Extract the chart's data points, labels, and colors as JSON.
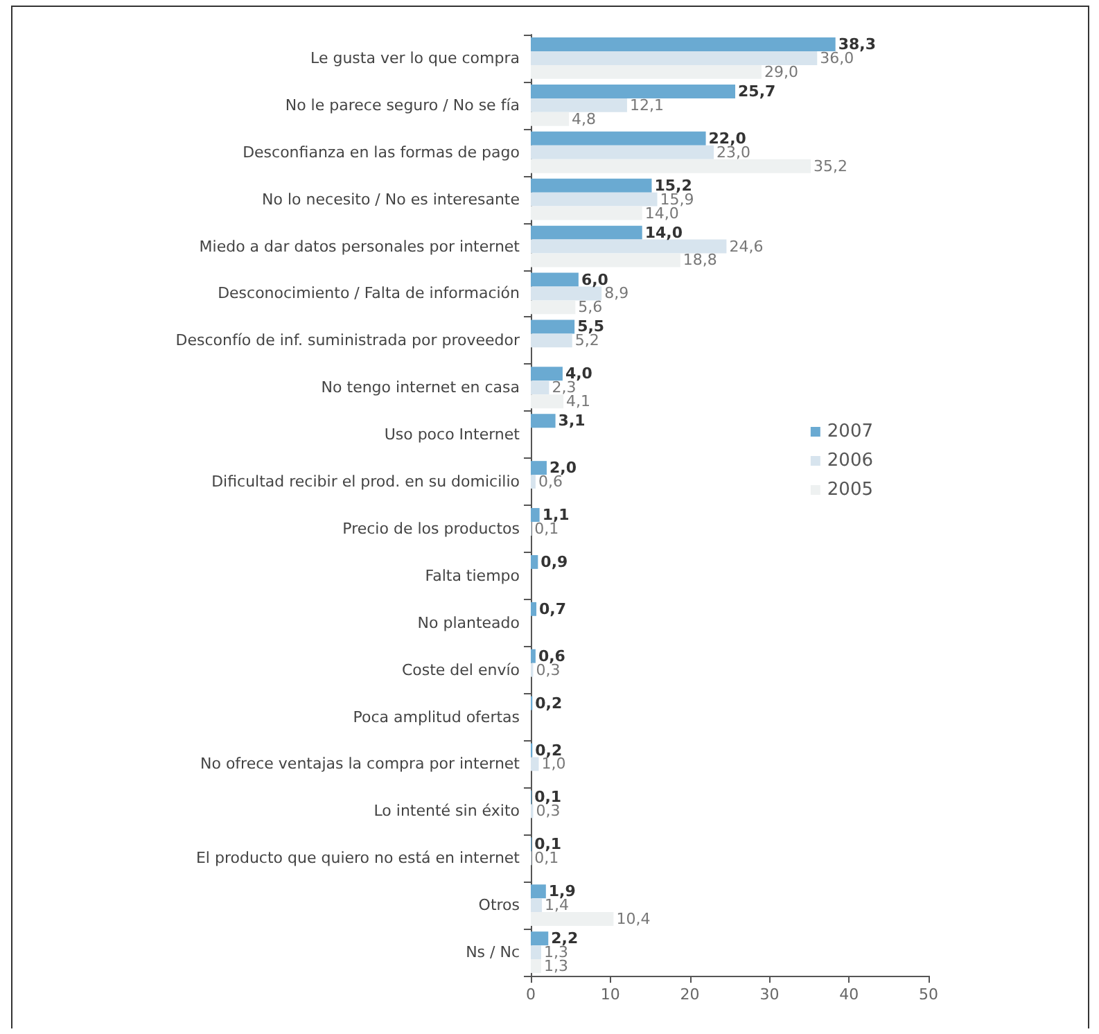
{
  "chart_data": {
    "type": "bar",
    "orientation": "horizontal",
    "categories": [
      "Le gusta ver lo que compra",
      "No le parece seguro / No se fía",
      "Desconfianza en las formas de pago",
      "No lo necesito / No es interesante",
      "Miedo a dar datos personales por internet",
      "Desconocimiento / Falta de información",
      "Desconfío de inf. suministrada por proveedor",
      "No tengo internet en casa",
      "Uso poco Internet",
      "Dificultad recibir el prod. en su domicilio",
      "Precio de los productos",
      "Falta tiempo",
      "No planteado",
      "Coste del envío",
      "Poca amplitud ofertas",
      "No ofrece ventajas la compra por internet",
      "Lo intenté sin éxito",
      "El producto que quiero no está en internet",
      "Otros",
      "Ns / Nc"
    ],
    "series": [
      {
        "name": "2007",
        "color": "#6aaad2",
        "values": [
          38.3,
          25.7,
          22.0,
          15.2,
          14.0,
          6.0,
          5.5,
          4.0,
          3.1,
          2.0,
          1.1,
          0.9,
          0.7,
          0.6,
          0.2,
          0.2,
          0.1,
          0.1,
          1.9,
          2.2
        ],
        "value_labels": [
          "38,3",
          "25,7",
          "22,0",
          "15,2",
          "14,0",
          "6,0",
          "5,5",
          "4,0",
          "3,1",
          "2,0",
          "1,1",
          "0,9",
          "0,7",
          "0,6",
          "0,2",
          "0,2",
          "0,1",
          "0,1",
          "1,9",
          "2,2"
        ]
      },
      {
        "name": "2006",
        "color": "#d7e4ee",
        "values": [
          36.0,
          12.1,
          23.0,
          15.9,
          24.6,
          8.9,
          5.2,
          2.3,
          null,
          0.6,
          0.1,
          null,
          null,
          0.3,
          null,
          1.0,
          0.3,
          0.1,
          1.4,
          1.3
        ],
        "value_labels": [
          "36,0",
          "12,1",
          "23,0",
          "15,9",
          "24,6",
          "8,9",
          "5,2",
          "2,3",
          null,
          "0,6",
          "0,1",
          null,
          null,
          "0,3",
          null,
          "1,0",
          "0,3",
          "0,1",
          "1,4",
          "1,3"
        ]
      },
      {
        "name": "2005",
        "color": "#eef1f1",
        "values": [
          29.0,
          4.8,
          35.2,
          14.0,
          18.8,
          5.6,
          null,
          4.1,
          null,
          null,
          null,
          null,
          null,
          null,
          null,
          null,
          null,
          null,
          10.4,
          1.3
        ],
        "value_labels": [
          "29,0",
          "4,8",
          "35,2",
          "14,0",
          "18,8",
          "5,6",
          null,
          "4,1",
          null,
          null,
          null,
          null,
          null,
          null,
          null,
          null,
          null,
          null,
          "10,4",
          "1,3"
        ]
      }
    ],
    "xlim": [
      0,
      50
    ],
    "xticks": [
      0,
      10,
      20,
      30,
      40,
      50
    ],
    "grid": false,
    "legend": "right"
  }
}
